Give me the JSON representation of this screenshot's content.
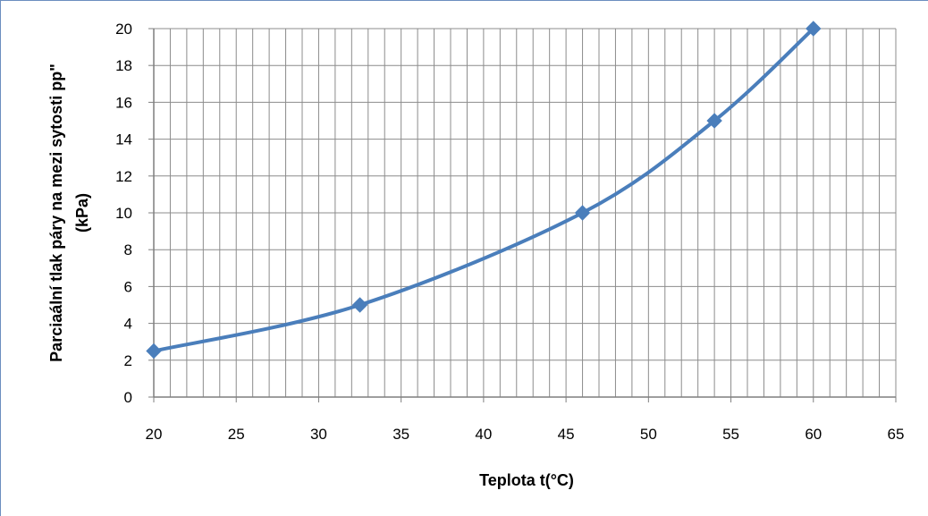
{
  "chart_data": {
    "type": "line",
    "title": "",
    "xlabel": "Teplota t(°C)",
    "ylabel_line1": "Parciaální tlak páry na mezi sytosti pp\"",
    "ylabel_line2": "(kPa)",
    "xlim": [
      20,
      65
    ],
    "ylim": [
      0,
      20
    ],
    "xticks": [
      20,
      25,
      30,
      35,
      40,
      45,
      50,
      55,
      60,
      65
    ],
    "yticks": [
      0,
      2,
      4,
      6,
      8,
      10,
      12,
      14,
      16,
      18,
      20
    ],
    "x_minor_step": 1,
    "y_minor_step": 2,
    "grid": true,
    "legend": "none",
    "series": [
      {
        "x": [
          20,
          32.5,
          46,
          54,
          60
        ],
        "y": [
          2.5,
          5,
          10,
          15,
          20
        ],
        "color": "#4a7ebb",
        "marker": "diamond",
        "smooth": true
      }
    ]
  }
}
